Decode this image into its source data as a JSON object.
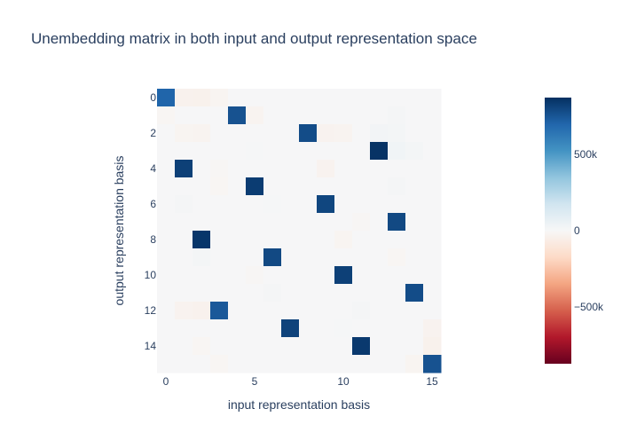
{
  "chart_data": {
    "type": "heatmap",
    "title": "Unembedding matrix in both input and output representation space",
    "xlabel": "input representation basis",
    "ylabel": "output representation basis",
    "x_range": [
      0,
      15
    ],
    "y_range": [
      0,
      15
    ],
    "x_tick_values": [
      0,
      5,
      10,
      15
    ],
    "y_tick_values": [
      0,
      2,
      4,
      6,
      8,
      10,
      12,
      14
    ],
    "colorscale": "RdBu",
    "colorscale_colors": [
      "#67001f",
      "#b2182b",
      "#d6604d",
      "#f4a582",
      "#fddbc7",
      "#f7f7f7",
      "#d1e5f0",
      "#92c5de",
      "#4393c3",
      "#2166ac",
      "#053061"
    ],
    "zmin": -870000,
    "zmax": 870000,
    "colorbar": {
      "tick_values": [
        500000,
        0,
        -500000
      ],
      "tick_labels": [
        "500k",
        "0",
        "−500k"
      ]
    },
    "background_value": 5000,
    "peak_cells": [
      {
        "row": 0,
        "col": 0,
        "value": 700000
      },
      {
        "row": 1,
        "col": 4,
        "value": 760000
      },
      {
        "row": 2,
        "col": 8,
        "value": 780000
      },
      {
        "row": 3,
        "col": 12,
        "value": 860000
      },
      {
        "row": 4,
        "col": 1,
        "value": 820000
      },
      {
        "row": 5,
        "col": 5,
        "value": 830000
      },
      {
        "row": 6,
        "col": 9,
        "value": 800000
      },
      {
        "row": 7,
        "col": 13,
        "value": 790000
      },
      {
        "row": 8,
        "col": 2,
        "value": 850000
      },
      {
        "row": 9,
        "col": 6,
        "value": 790000
      },
      {
        "row": 10,
        "col": 10,
        "value": 820000
      },
      {
        "row": 11,
        "col": 14,
        "value": 780000
      },
      {
        "row": 12,
        "col": 3,
        "value": 740000
      },
      {
        "row": 13,
        "col": 7,
        "value": 810000
      },
      {
        "row": 14,
        "col": 11,
        "value": 840000
      },
      {
        "row": 15,
        "col": 15,
        "value": 760000
      }
    ],
    "minor_cells": [
      {
        "row": 0,
        "col": 1,
        "value": -35000
      },
      {
        "row": 0,
        "col": 2,
        "value": -40000
      },
      {
        "row": 0,
        "col": 3,
        "value": -20000
      },
      {
        "row": 1,
        "col": 0,
        "value": -15000
      },
      {
        "row": 1,
        "col": 5,
        "value": -25000
      },
      {
        "row": 1,
        "col": 13,
        "value": 15000
      },
      {
        "row": 2,
        "col": 1,
        "value": -20000
      },
      {
        "row": 2,
        "col": 2,
        "value": -25000
      },
      {
        "row": 2,
        "col": 9,
        "value": -30000
      },
      {
        "row": 2,
        "col": 10,
        "value": -25000
      },
      {
        "row": 2,
        "col": 12,
        "value": 25000
      },
      {
        "row": 2,
        "col": 13,
        "value": 20000
      },
      {
        "row": 3,
        "col": 5,
        "value": 10000
      },
      {
        "row": 3,
        "col": 13,
        "value": 30000
      },
      {
        "row": 3,
        "col": 14,
        "value": 20000
      },
      {
        "row": 4,
        "col": 3,
        "value": -10000
      },
      {
        "row": 4,
        "col": 9,
        "value": -30000
      },
      {
        "row": 5,
        "col": 3,
        "value": -15000
      },
      {
        "row": 5,
        "col": 13,
        "value": 15000
      },
      {
        "row": 6,
        "col": 1,
        "value": 15000
      },
      {
        "row": 6,
        "col": 6,
        "value": 10000
      },
      {
        "row": 7,
        "col": 11,
        "value": -10000
      },
      {
        "row": 8,
        "col": 10,
        "value": -20000
      },
      {
        "row": 9,
        "col": 2,
        "value": 20000
      },
      {
        "row": 9,
        "col": 13,
        "value": -15000
      },
      {
        "row": 10,
        "col": 5,
        "value": -10000
      },
      {
        "row": 11,
        "col": 6,
        "value": 15000
      },
      {
        "row": 12,
        "col": 1,
        "value": -30000
      },
      {
        "row": 12,
        "col": 2,
        "value": -35000
      },
      {
        "row": 12,
        "col": 11,
        "value": 15000
      },
      {
        "row": 13,
        "col": 10,
        "value": 10000
      },
      {
        "row": 13,
        "col": 15,
        "value": -30000
      },
      {
        "row": 14,
        "col": 15,
        "value": -40000
      },
      {
        "row": 14,
        "col": 2,
        "value": -15000
      },
      {
        "row": 15,
        "col": 3,
        "value": -15000
      },
      {
        "row": 15,
        "col": 14,
        "value": -20000
      }
    ]
  }
}
